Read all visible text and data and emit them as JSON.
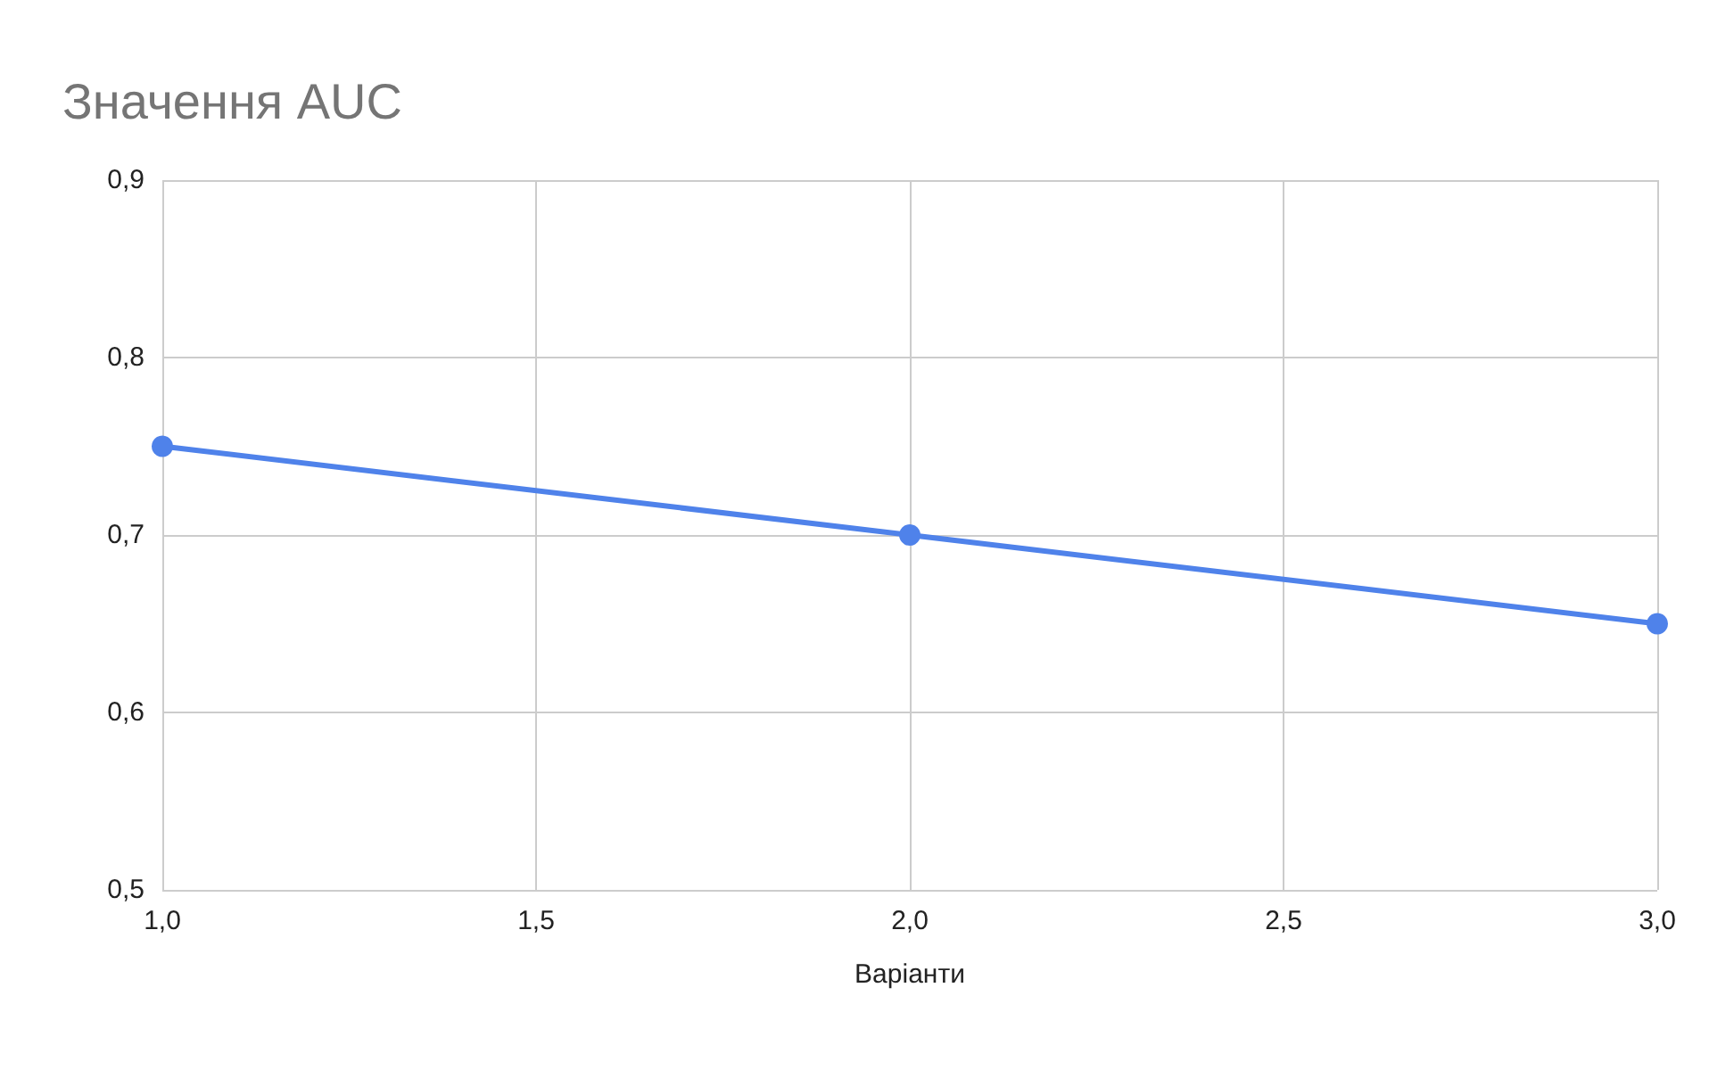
{
  "chart_data": {
    "type": "line",
    "title": "Значення AUC",
    "xlabel": "Варіанти",
    "x": [
      1,
      2,
      3
    ],
    "series": [
      {
        "color": "#4f82ea",
        "values": [
          0.75,
          0.7,
          0.65
        ]
      }
    ],
    "xlim": [
      1,
      3
    ],
    "xticks": [
      {
        "value": 1,
        "label": "1,0"
      },
      {
        "value": 1.5,
        "label": "1,5"
      },
      {
        "value": 2,
        "label": "2,0"
      },
      {
        "value": 2.5,
        "label": "2,5"
      },
      {
        "value": 3,
        "label": "3,0"
      }
    ],
    "ylim": [
      0.5,
      0.9
    ],
    "yticks": [
      {
        "value": 0.5,
        "label": "0,5"
      },
      {
        "value": 0.6,
        "label": "0,6"
      },
      {
        "value": 0.7,
        "label": "0,7"
      },
      {
        "value": 0.8,
        "label": "0,8"
      },
      {
        "value": 0.9,
        "label": "0,9"
      }
    ],
    "grid": true,
    "marker": "circle"
  }
}
